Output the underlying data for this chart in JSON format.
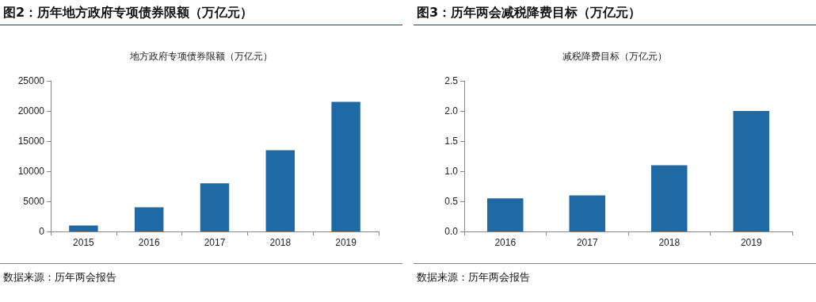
{
  "chart_data": [
    {
      "type": "bar",
      "title": "图2：历年地方政府专项债券限额（万亿元）",
      "subtitle": "地方政府专项债券限额（万亿元）",
      "categories": [
        "2015",
        "2016",
        "2017",
        "2018",
        "2019"
      ],
      "values": [
        1000,
        4000,
        8000,
        13500,
        21500
      ],
      "color": "#1f6aa5",
      "ylim": [
        0,
        25000
      ],
      "yticks": [
        0,
        5000,
        10000,
        15000,
        20000,
        25000
      ],
      "grid": false,
      "annotations": [
        "数据来源：历年两会报告"
      ]
    },
    {
      "type": "bar",
      "title": "图3：历年两会减税降费目标（万亿元）",
      "subtitle": "减税降费目标（万亿元）",
      "categories": [
        "2016",
        "2017",
        "2018",
        "2019"
      ],
      "values": [
        0.55,
        0.6,
        1.1,
        2.0
      ],
      "color": "#1f6aa5",
      "ylim": [
        0,
        2.5
      ],
      "yticks": [
        {
          "value": 0,
          "label": "0.0"
        },
        0.5,
        {
          "value": 1,
          "label": "1.0"
        },
        1.5,
        {
          "value": 2,
          "label": "2.0"
        },
        2.5
      ],
      "grid": false,
      "annotations": [
        "数据来源：历年两会报告"
      ]
    }
  ]
}
